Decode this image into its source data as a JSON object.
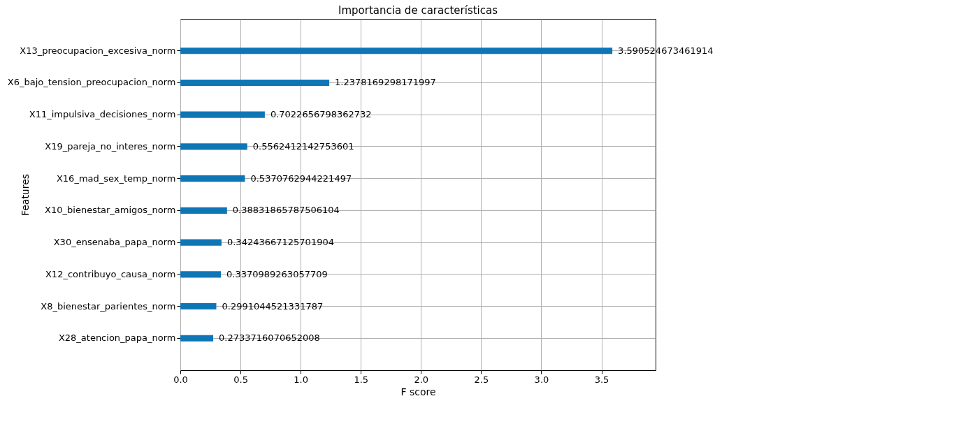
{
  "chart_data": {
    "type": "bar",
    "orientation": "horizontal",
    "title": "Importancia de características",
    "xlabel": "F score",
    "ylabel": "Features",
    "categories": [
      "X13_preocupacion_excesiva_norm",
      "X6_bajo_tension_preocupacion_norm",
      "X11_impulsiva_decisiones_norm",
      "X19_pareja_no_interes_norm",
      "X16_mad_sex_temp_norm",
      "X10_bienestar_amigos_norm",
      "X30_ensenaba_papa_norm",
      "X12_contribuyo_causa_norm",
      "X8_bienestar_parientes_norm",
      "X28_atencion_papa_norm"
    ],
    "values": [
      3.590524673461914,
      1.2378169298171997,
      0.7022656798362732,
      0.5562412142753601,
      0.5370762944221497,
      0.38831865787506104,
      0.34243667125701904,
      0.3370989263057709,
      0.2991044521331787,
      0.2733716070652008
    ],
    "value_labels": [
      "3.590524673461914",
      "1.2378169298171997",
      "0.7022656798362732",
      "0.5562412142753601",
      "0.5370762944221497",
      "0.38831865787506104",
      "0.34243667125701904",
      "0.3370989263057709",
      "0.2991044521331787",
      "0.2733716070652008"
    ],
    "color": "#0e76b6",
    "grid": true,
    "xlim": [
      0,
      3.95
    ],
    "xticks": [
      {
        "value": 0,
        "label": "0.0"
      },
      0.5,
      {
        "value": 1,
        "label": "1.0"
      },
      1.5,
      {
        "value": 2,
        "label": "2.0"
      },
      2.5,
      {
        "value": 3,
        "label": "3.0"
      },
      3.5
    ]
  }
}
